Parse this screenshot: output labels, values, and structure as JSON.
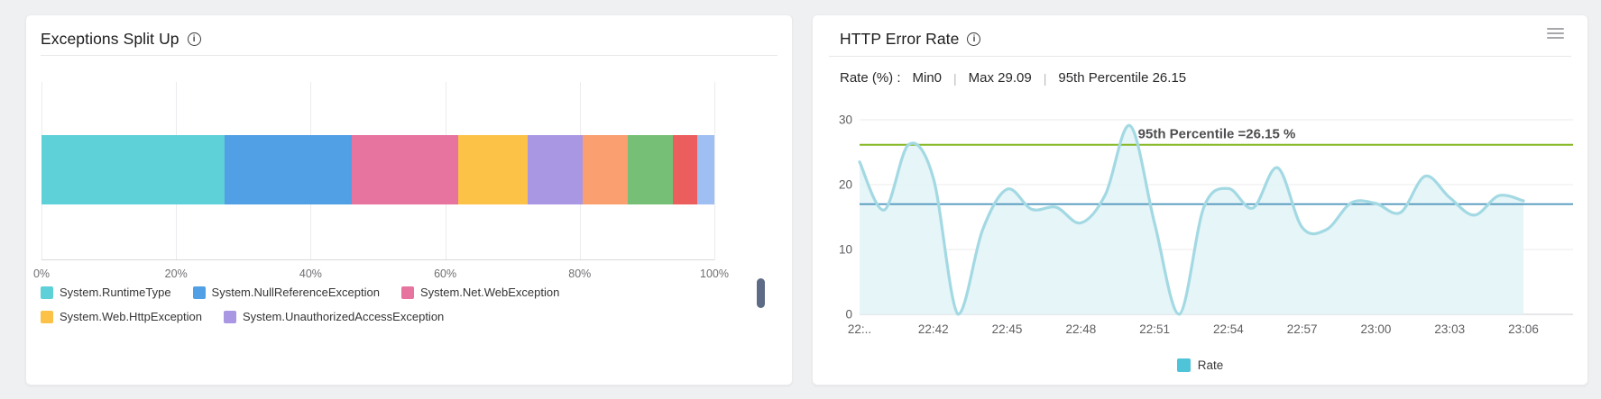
{
  "left_panel": {
    "title": "Exceptions Split Up",
    "info_icon_glyph": "i",
    "x_ticks": [
      "0%",
      "20%",
      "40%",
      "60%",
      "80%",
      "100%"
    ]
  },
  "right_panel": {
    "title": "HTTP Error Rate",
    "info_icon_glyph": "i",
    "menu_icon": "hamburger-icon",
    "stats": {
      "metric_label": "Rate (%) :",
      "min": "Min0",
      "separator": "|",
      "max": "Max 29.09",
      "p95": "95th Percentile 26.15"
    }
  },
  "chart_data": [
    {
      "type": "bar",
      "stacked": true,
      "orientation": "horizontal",
      "title": "Exceptions Split Up",
      "unit": "%",
      "xlim": [
        0,
        100
      ],
      "x_tick_labels": [
        "0%",
        "20%",
        "40%",
        "60%",
        "80%",
        "100%"
      ],
      "segments": [
        {
          "name": "System.RuntimeType",
          "value": 27.2,
          "color": "#5ed0d8"
        },
        {
          "name": "System.NullReferenceException",
          "value": 18.9,
          "color": "#519fe4"
        },
        {
          "name": "System.Net.WebException",
          "value": 15.8,
          "color": "#e7739f"
        },
        {
          "name": "System.Web.HttpException",
          "value": 10.3,
          "color": "#fcc247"
        },
        {
          "name": "System.UnauthorizedAccessException",
          "value": 8.3,
          "color": "#aa97e4"
        },
        {
          "name": "",
          "value": 6.6,
          "color": "#f99f70"
        },
        {
          "name": "",
          "value": 6.8,
          "color": "#76bf76"
        },
        {
          "name": "",
          "value": 3.6,
          "color": "#ec5e5e"
        },
        {
          "name": "",
          "value": 2.5,
          "color": "#9fbef1"
        }
      ],
      "legend_visible_count": 5,
      "legend_position": "bottom-left"
    },
    {
      "type": "area",
      "title": "HTTP Error Rate",
      "series_name": "Rate",
      "ylim": [
        0,
        30
      ],
      "y_ticks": [
        30,
        20,
        10,
        0
      ],
      "x_tick_labels": [
        "22:..",
        "22:42",
        "22:45",
        "22:48",
        "22:51",
        "22:54",
        "22:57",
        "23:00",
        "23:03",
        "23:06"
      ],
      "x_tick_interval_minutes": 3,
      "x": [
        "22:39",
        "22:40",
        "22:41",
        "22:42",
        "22:43",
        "22:44",
        "22:45",
        "22:46",
        "22:47",
        "22:48",
        "22:49",
        "22:50",
        "22:51",
        "22:52",
        "22:53",
        "22:54",
        "22:55",
        "22:56",
        "22:57",
        "22:58",
        "22:59",
        "23:00",
        "23:01",
        "23:02",
        "23:03",
        "23:04",
        "23:05",
        "23:06"
      ],
      "values": [
        23.5,
        16.1,
        26.2,
        21,
        0,
        13,
        19.3,
        16.2,
        16.5,
        14.1,
        18.5,
        29.09,
        14,
        0,
        16.5,
        19.4,
        16.4,
        22.6,
        13.4,
        13.1,
        17.2,
        17.1,
        15.7,
        21.3,
        18,
        15.3,
        18.3,
        17.5
      ],
      "percentile_line": {
        "value": 26.15,
        "label": "95th Percentile =26.15 %",
        "color": "#84b822"
      },
      "mean_line": {
        "value": 17,
        "color": "#4a93ba"
      },
      "line_color": "#a3d9e3",
      "fill_color": "#e1f3f7",
      "legend": [
        {
          "label": "Rate",
          "color": "#4fc3d7"
        }
      ],
      "legend_position": "bottom-center",
      "grid": true
    }
  ]
}
